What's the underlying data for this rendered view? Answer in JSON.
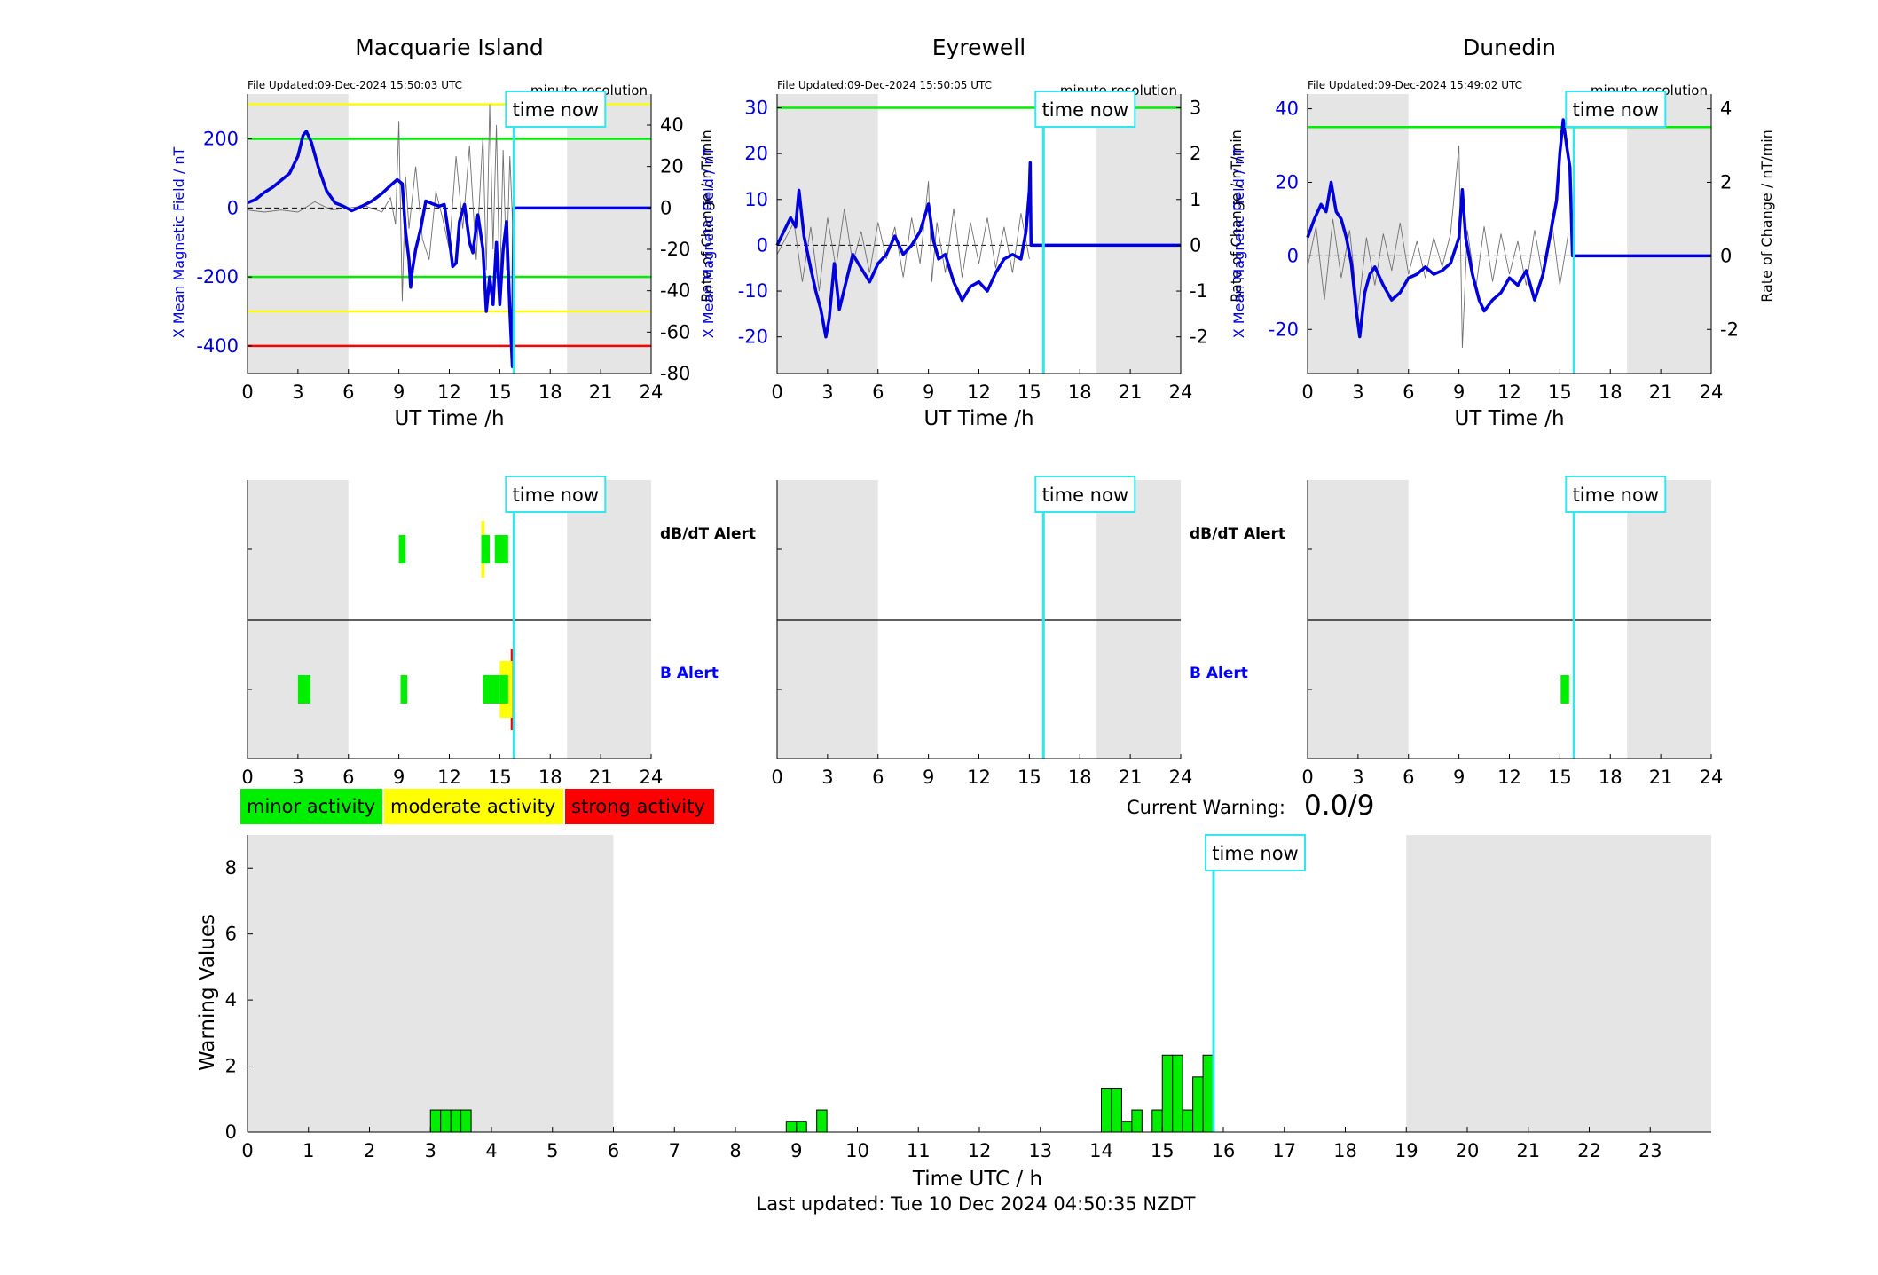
{
  "colors": {
    "shade": "#e5e5e5",
    "field_line": "#0000dd",
    "rate_line": "#707070",
    "time_now": "#33e6ee",
    "minor": "#00ee00",
    "moderate": "#ffff00",
    "strong": "#ff0000",
    "b_alert_label": "#0000ff",
    "threshold_green": "#00ee00",
    "threshold_yellow": "#ffff00",
    "threshold_red": "#ff0000"
  },
  "time_now_label": "time now",
  "time_now_value": 15.84,
  "top_xlabel": "UT Time /h",
  "top_xticks": [
    "0",
    "3",
    "6",
    "9",
    "12",
    "15",
    "18",
    "21",
    "24"
  ],
  "night_shading": [
    [
      0,
      6
    ],
    [
      19,
      24
    ]
  ],
  "resolution_label": "minute resolution",
  "left_ylabel": "X Mean Magnetic Field / nT",
  "right_ylabel": "Rate of Change / nT/min",
  "stations": [
    {
      "name": "Macquarie Island",
      "file_updated": "File Updated:09-Dec-2024 15:50:03 UTC",
      "left_ylim": [
        -480,
        330
      ],
      "left_ticks": [
        "200",
        "0",
        "-200",
        "-400"
      ],
      "left_tick_values": [
        200,
        0,
        -200,
        -400
      ],
      "right_ylim": [
        -80,
        55
      ],
      "right_ticks": [
        "40",
        "20",
        "0",
        "-20",
        "-40",
        "-60",
        "-80"
      ],
      "right_tick_values": [
        40,
        20,
        0,
        -20,
        -40,
        -60,
        -80
      ],
      "thresholds_field": [
        {
          "y": 300,
          "color": "yellow"
        },
        {
          "y": 200,
          "color": "green"
        },
        {
          "y": -200,
          "color": "green"
        },
        {
          "y": -300,
          "color": "yellow"
        },
        {
          "y": -400,
          "color": "red"
        }
      ],
      "field": [
        [
          0,
          15
        ],
        [
          0.5,
          25
        ],
        [
          1,
          45
        ],
        [
          1.5,
          60
        ],
        [
          2,
          80
        ],
        [
          2.5,
          100
        ],
        [
          3,
          150
        ],
        [
          3.3,
          210
        ],
        [
          3.5,
          222
        ],
        [
          3.8,
          190
        ],
        [
          4.2,
          120
        ],
        [
          4.7,
          50
        ],
        [
          5.2,
          15
        ],
        [
          5.7,
          5
        ],
        [
          6.2,
          -8
        ],
        [
          6.8,
          5
        ],
        [
          7.4,
          20
        ],
        [
          8,
          42
        ],
        [
          8.5,
          65
        ],
        [
          8.9,
          82
        ],
        [
          9.2,
          70
        ],
        [
          9.4,
          -70
        ],
        [
          9.6,
          -150
        ],
        [
          9.7,
          -230
        ],
        [
          9.8,
          -180
        ],
        [
          10,
          -120
        ],
        [
          10.3,
          -60
        ],
        [
          10.6,
          20
        ],
        [
          11,
          12
        ],
        [
          11.4,
          5
        ],
        [
          11.7,
          10
        ],
        [
          12,
          -90
        ],
        [
          12.2,
          -170
        ],
        [
          12.4,
          -160
        ],
        [
          12.6,
          -40
        ],
        [
          12.9,
          10
        ],
        [
          13.2,
          -100
        ],
        [
          13.4,
          -130
        ],
        [
          13.7,
          -20
        ],
        [
          14,
          -120
        ],
        [
          14.2,
          -300
        ],
        [
          14.4,
          -200
        ],
        [
          14.6,
          -280
        ],
        [
          14.8,
          -100
        ],
        [
          15,
          -280
        ],
        [
          15.2,
          -120
        ],
        [
          15.4,
          -40
        ],
        [
          15.6,
          -300
        ],
        [
          15.75,
          -460
        ],
        [
          15.84,
          0
        ],
        [
          24,
          0
        ]
      ],
      "rate": [
        [
          0,
          -1
        ],
        [
          1,
          -2
        ],
        [
          2,
          -1
        ],
        [
          3,
          -2
        ],
        [
          4,
          3
        ],
        [
          5,
          -1
        ],
        [
          6,
          0
        ],
        [
          7,
          1
        ],
        [
          8,
          -2
        ],
        [
          8.5,
          5
        ],
        [
          8.8,
          -8
        ],
        [
          9,
          42
        ],
        [
          9.2,
          -45
        ],
        [
          9.4,
          15
        ],
        [
          9.6,
          -10
        ],
        [
          10,
          20
        ],
        [
          10.4,
          -15
        ],
        [
          10.8,
          -25
        ],
        [
          11.2,
          8
        ],
        [
          11.6,
          -5
        ],
        [
          12,
          -20
        ],
        [
          12.4,
          25
        ],
        [
          12.8,
          -10
        ],
        [
          13.2,
          30
        ],
        [
          13.6,
          -25
        ],
        [
          14,
          35
        ],
        [
          14.2,
          -30
        ],
        [
          14.4,
          50
        ],
        [
          14.6,
          -20
        ],
        [
          14.8,
          40
        ],
        [
          15,
          -40
        ],
        [
          15.2,
          28
        ],
        [
          15.4,
          -30
        ],
        [
          15.6,
          25
        ],
        [
          15.8,
          -15
        ]
      ],
      "dbdt_alert": [
        [
          9,
          9.4,
          "minor"
        ],
        [
          13.9,
          14.1,
          "moderate"
        ],
        [
          13.9,
          14.4,
          "minor"
        ],
        [
          14.7,
          15.5,
          "minor"
        ]
      ],
      "b_alert": [
        [
          3,
          3.75,
          "minor"
        ],
        [
          9.1,
          9.5,
          "minor"
        ],
        [
          14.0,
          15.0,
          "minor"
        ],
        [
          15.0,
          15.5,
          "minor"
        ],
        [
          15.0,
          15.5,
          "moderate"
        ],
        [
          15.5,
          15.75,
          "moderate"
        ],
        [
          15.65,
          15.84,
          "strong"
        ]
      ]
    },
    {
      "name": "Eyrewell",
      "file_updated": "File Updated:09-Dec-2024 15:50:05 UTC",
      "left_ylim": [
        -28,
        33
      ],
      "left_ticks": [
        "30",
        "20",
        "10",
        "0",
        "-10",
        "-20"
      ],
      "left_tick_values": [
        30,
        20,
        10,
        0,
        -10,
        -20
      ],
      "right_ylim": [
        -2.8,
        3.3
      ],
      "right_ticks": [
        "3",
        "2",
        "1",
        "0",
        "-1",
        "-2"
      ],
      "right_tick_values": [
        3,
        2,
        1,
        0,
        -1,
        -2
      ],
      "thresholds_field": [
        {
          "y": 30,
          "color": "green"
        }
      ],
      "field": [
        [
          0,
          0
        ],
        [
          0.4,
          3
        ],
        [
          0.8,
          6
        ],
        [
          1.1,
          4
        ],
        [
          1.3,
          12
        ],
        [
          1.6,
          2
        ],
        [
          2,
          -5
        ],
        [
          2.3,
          -10
        ],
        [
          2.6,
          -14
        ],
        [
          2.9,
          -20
        ],
        [
          3.1,
          -16
        ],
        [
          3.4,
          -4
        ],
        [
          3.7,
          -14
        ],
        [
          4.1,
          -8
        ],
        [
          4.5,
          -2
        ],
        [
          5,
          -5
        ],
        [
          5.5,
          -8
        ],
        [
          6,
          -4
        ],
        [
          6.5,
          -2
        ],
        [
          7,
          2
        ],
        [
          7.5,
          -2
        ],
        [
          8,
          0
        ],
        [
          8.5,
          3
        ],
        [
          9,
          9
        ],
        [
          9.3,
          1
        ],
        [
          9.6,
          -3
        ],
        [
          10,
          -2
        ],
        [
          10.5,
          -8
        ],
        [
          11,
          -12
        ],
        [
          11.5,
          -9
        ],
        [
          12,
          -8
        ],
        [
          12.5,
          -10
        ],
        [
          13,
          -6
        ],
        [
          13.5,
          -3
        ],
        [
          14,
          -2
        ],
        [
          14.5,
          -3
        ],
        [
          14.8,
          3
        ],
        [
          15,
          12
        ],
        [
          15.05,
          18
        ],
        [
          15.1,
          0
        ],
        [
          24,
          0
        ]
      ],
      "rate": [
        [
          0,
          -0.2
        ],
        [
          1,
          0.5
        ],
        [
          1.5,
          -0.8
        ],
        [
          2,
          0.4
        ],
        [
          2.5,
          -1.0
        ],
        [
          3,
          0.6
        ],
        [
          3.5,
          -0.5
        ],
        [
          4,
          0.8
        ],
        [
          4.5,
          -0.4
        ],
        [
          5,
          0.3
        ],
        [
          5.5,
          -0.6
        ],
        [
          6,
          0.5
        ],
        [
          6.5,
          -0.3
        ],
        [
          7,
          0.4
        ],
        [
          7.5,
          -0.7
        ],
        [
          8,
          0.6
        ],
        [
          8.5,
          -0.4
        ],
        [
          9,
          1.4
        ],
        [
          9.2,
          -0.8
        ],
        [
          9.5,
          0.5
        ],
        [
          10,
          -0.6
        ],
        [
          10.5,
          0.8
        ],
        [
          11,
          -0.7
        ],
        [
          11.5,
          0.5
        ],
        [
          12,
          -0.4
        ],
        [
          12.5,
          0.6
        ],
        [
          13,
          -0.5
        ],
        [
          13.5,
          0.4
        ],
        [
          14,
          -0.6
        ],
        [
          14.5,
          0.7
        ],
        [
          15,
          -0.3
        ]
      ],
      "dbdt_alert": [],
      "b_alert": []
    },
    {
      "name": "Dunedin",
      "file_updated": "File Updated:09-Dec-2024 15:49:02 UTC",
      "left_ylim": [
        -32,
        44
      ],
      "left_ticks": [
        "40",
        "20",
        "0",
        "-20"
      ],
      "left_tick_values": [
        40,
        20,
        0,
        -20
      ],
      "right_ylim": [
        -3.2,
        4.4
      ],
      "right_ticks": [
        "4",
        "2",
        "0",
        "-2"
      ],
      "right_tick_values": [
        4,
        2,
        0,
        -2
      ],
      "thresholds_field": [
        {
          "y": 35,
          "color": "green"
        }
      ],
      "field": [
        [
          0,
          5
        ],
        [
          0.4,
          10
        ],
        [
          0.8,
          14
        ],
        [
          1.1,
          12
        ],
        [
          1.4,
          20
        ],
        [
          1.7,
          12
        ],
        [
          2,
          10
        ],
        [
          2.3,
          5
        ],
        [
          2.6,
          -2
        ],
        [
          2.9,
          -15
        ],
        [
          3.1,
          -22
        ],
        [
          3.4,
          -10
        ],
        [
          3.7,
          -5
        ],
        [
          4,
          -3
        ],
        [
          4.5,
          -8
        ],
        [
          5,
          -12
        ],
        [
          5.5,
          -10
        ],
        [
          6,
          -6
        ],
        [
          6.5,
          -5
        ],
        [
          7,
          -3
        ],
        [
          7.5,
          -5
        ],
        [
          8,
          -4
        ],
        [
          8.5,
          -2
        ],
        [
          9,
          5
        ],
        [
          9.2,
          18
        ],
        [
          9.4,
          5
        ],
        [
          9.8,
          -5
        ],
        [
          10.2,
          -12
        ],
        [
          10.5,
          -15
        ],
        [
          11,
          -12
        ],
        [
          11.5,
          -10
        ],
        [
          12,
          -6
        ],
        [
          12.5,
          -8
        ],
        [
          13,
          -4
        ],
        [
          13.5,
          -12
        ],
        [
          14,
          -5
        ],
        [
          14.4,
          5
        ],
        [
          14.8,
          15
        ],
        [
          15,
          28
        ],
        [
          15.2,
          37
        ],
        [
          15.4,
          30
        ],
        [
          15.6,
          24
        ],
        [
          15.75,
          0
        ],
        [
          24,
          0
        ]
      ],
      "rate": [
        [
          0,
          -0.3
        ],
        [
          0.5,
          0.8
        ],
        [
          1,
          -1.2
        ],
        [
          1.5,
          1.0
        ],
        [
          2,
          -0.6
        ],
        [
          2.5,
          0.7
        ],
        [
          3,
          -1.5
        ],
        [
          3.5,
          0.5
        ],
        [
          4,
          -0.8
        ],
        [
          4.5,
          0.6
        ],
        [
          5,
          -0.4
        ],
        [
          5.5,
          0.9
        ],
        [
          6,
          -0.5
        ],
        [
          6.5,
          0.4
        ],
        [
          7,
          -0.6
        ],
        [
          7.5,
          0.5
        ],
        [
          8,
          -0.3
        ],
        [
          8.5,
          0.6
        ],
        [
          9,
          3.0
        ],
        [
          9.2,
          -2.5
        ],
        [
          9.5,
          0.7
        ],
        [
          10,
          -0.9
        ],
        [
          10.5,
          0.8
        ],
        [
          11,
          -0.7
        ],
        [
          11.5,
          0.6
        ],
        [
          12,
          -0.5
        ],
        [
          12.5,
          0.4
        ],
        [
          13,
          -0.8
        ],
        [
          13.5,
          0.7
        ],
        [
          14,
          -0.6
        ],
        [
          14.5,
          1.0
        ],
        [
          15,
          -0.8
        ],
        [
          15.5,
          0.6
        ]
      ],
      "dbdt_alert": [],
      "b_alert": [
        [
          15.05,
          15.55,
          "minor"
        ]
      ]
    }
  ],
  "alert_labels": {
    "dbdt": "dB/dT Alert",
    "b": "B Alert"
  },
  "legend": [
    {
      "label": "minor activity",
      "color": "minor"
    },
    {
      "label": "moderate activity",
      "color": "moderate"
    },
    {
      "label": "strong activity",
      "color": "strong"
    }
  ],
  "current_warning_label": "Current Warning:",
  "current_warning_value": "0.0/9",
  "chart_data": {
    "type": "bar",
    "title": "",
    "xlabel": "Time UTC / h",
    "ylabel": "Warning Values",
    "xlim": [
      0,
      24
    ],
    "ylim": [
      0,
      9
    ],
    "xticks": [
      "0",
      "1",
      "2",
      "3",
      "4",
      "5",
      "6",
      "7",
      "8",
      "9",
      "10",
      "11",
      "12",
      "13",
      "14",
      "15",
      "16",
      "17",
      "18",
      "19",
      "20",
      "21",
      "22",
      "23"
    ],
    "yticks": [
      "0",
      "2",
      "4",
      "6",
      "8"
    ],
    "bar_width": 0.1667,
    "bars": [
      [
        3.0,
        0.67
      ],
      [
        3.1667,
        0.67
      ],
      [
        3.3333,
        0.67
      ],
      [
        3.5,
        0.67
      ],
      [
        8.8333,
        0.33
      ],
      [
        9.0,
        0.33
      ],
      [
        9.3333,
        0.67
      ],
      [
        14.0,
        1.33
      ],
      [
        14.1667,
        1.33
      ],
      [
        14.3333,
        0.33
      ],
      [
        14.5,
        0.67
      ],
      [
        14.8333,
        0.67
      ],
      [
        15.0,
        2.33
      ],
      [
        15.1667,
        2.33
      ],
      [
        15.3333,
        0.67
      ],
      [
        15.5,
        1.67
      ],
      [
        15.6667,
        2.33
      ]
    ],
    "grid": false
  },
  "last_updated": "Last updated: Tue 10 Dec 2024 04:50:35 NZDT"
}
